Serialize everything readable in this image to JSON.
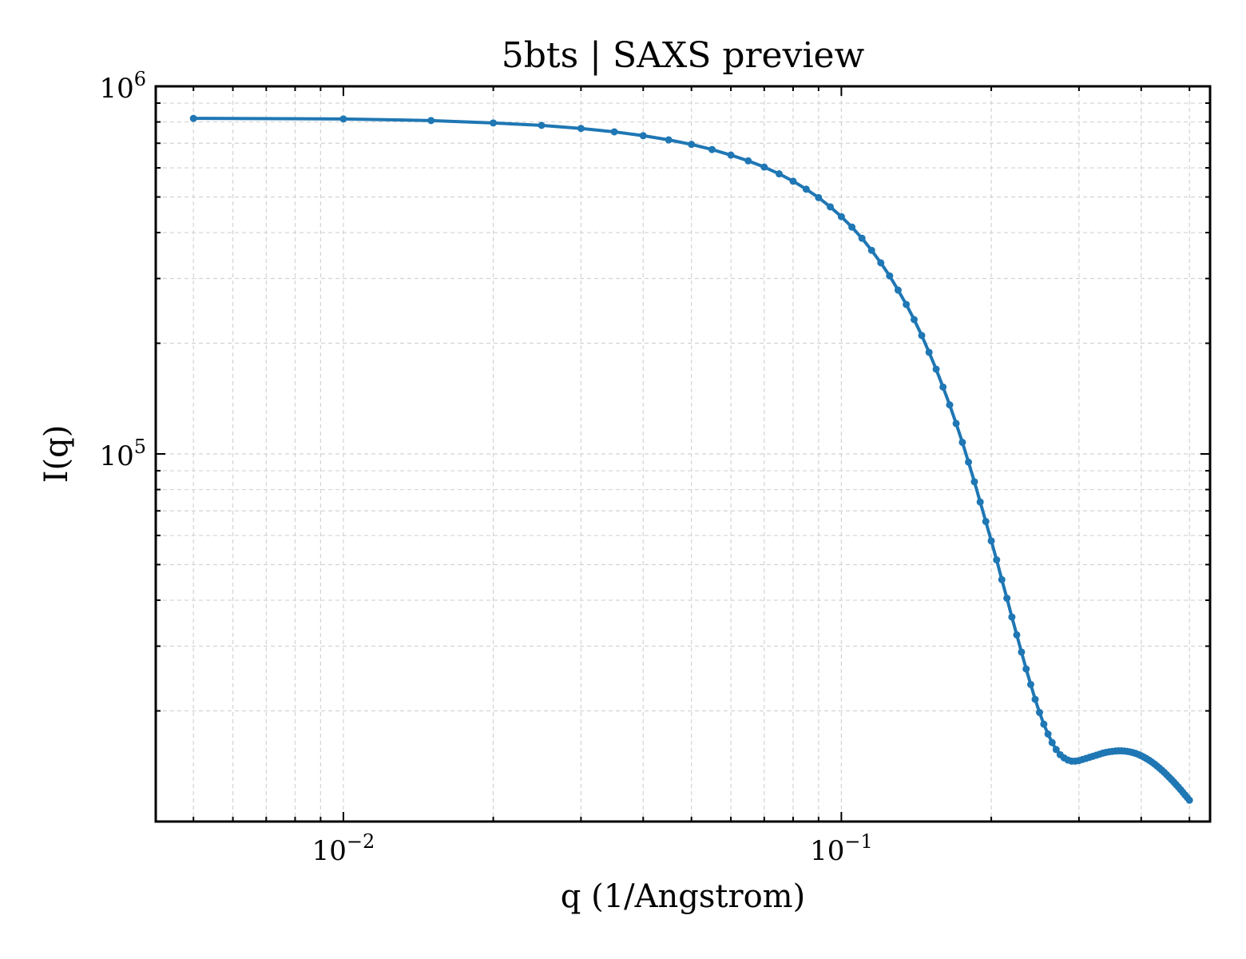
{
  "chart_data": {
    "type": "line",
    "title": "5bts | SAXS preview",
    "xlabel": "q (1/Angstrom)",
    "ylabel": "I(q)",
    "xscale": "log",
    "yscale": "log",
    "xlim": [
      0.0042,
      0.55
    ],
    "ylim": [
      10000,
      1000000
    ],
    "grid": true,
    "line_color": "#1f77b4",
    "x_major_ticks": [
      {
        "value": 0.01,
        "base": "10",
        "exp": "−2"
      },
      {
        "value": 0.1,
        "base": "10",
        "exp": "−1"
      }
    ],
    "y_major_ticks": [
      {
        "value": 100000,
        "base": "10",
        "exp": "5"
      },
      {
        "value": 1000000,
        "base": "10",
        "exp": "6"
      }
    ],
    "series": [
      {
        "x": [
          0.005,
          0.01,
          0.015,
          0.02,
          0.025,
          0.03,
          0.035,
          0.04,
          0.045,
          0.05,
          0.055,
          0.06,
          0.065,
          0.07,
          0.075,
          0.08,
          0.085,
          0.09,
          0.095,
          0.1,
          0.105,
          0.11,
          0.115,
          0.12,
          0.125,
          0.13,
          0.135,
          0.14,
          0.145,
          0.15,
          0.155,
          0.16,
          0.165,
          0.17,
          0.175,
          0.18,
          0.185,
          0.19,
          0.195,
          0.2,
          0.205,
          0.21,
          0.215,
          0.22,
          0.225,
          0.23,
          0.235,
          0.24,
          0.245,
          0.25,
          0.255,
          0.26,
          0.265,
          0.27,
          0.275,
          0.28,
          0.285,
          0.29,
          0.295,
          0.3,
          0.305,
          0.31,
          0.315,
          0.32,
          0.325,
          0.33,
          0.335,
          0.34,
          0.345,
          0.35,
          0.355,
          0.36,
          0.365,
          0.37,
          0.375,
          0.38,
          0.385,
          0.39,
          0.395,
          0.4,
          0.405,
          0.41,
          0.415,
          0.42,
          0.425,
          0.43,
          0.435,
          0.44,
          0.445,
          0.45,
          0.455,
          0.46,
          0.465,
          0.47,
          0.475,
          0.48,
          0.485,
          0.49,
          0.495,
          0.5
        ],
        "y": [
          818000,
          815000,
          807000,
          795000,
          783000,
          768000,
          752000,
          734000,
          715000,
          695000,
          673000,
          650000,
          627000,
          603000,
          578000,
          552000,
          525000,
          498000,
          470000,
          442000,
          414000,
          386000,
          358000,
          331000,
          305000,
          279000,
          255000,
          232000,
          210000,
          189000,
          170000,
          152000,
          136000,
          121000,
          107500,
          95000,
          84000,
          74000,
          65500,
          58000,
          51500,
          45500,
          40500,
          36000,
          32200,
          28900,
          26000,
          23600,
          21500,
          19800,
          18400,
          17300,
          16400,
          15700,
          15200,
          14900,
          14700,
          14600,
          14600,
          14650,
          14750,
          14850,
          14950,
          15050,
          15150,
          15250,
          15350,
          15420,
          15480,
          15520,
          15550,
          15570,
          15570,
          15550,
          15520,
          15470,
          15400,
          15320,
          15220,
          15100,
          14970,
          14830,
          14680,
          14520,
          14350,
          14170,
          13990,
          13800,
          13610,
          13410,
          13210,
          13010,
          12810,
          12610,
          12410,
          12210,
          12010,
          11810,
          11620,
          11430
        ]
      }
    ]
  }
}
